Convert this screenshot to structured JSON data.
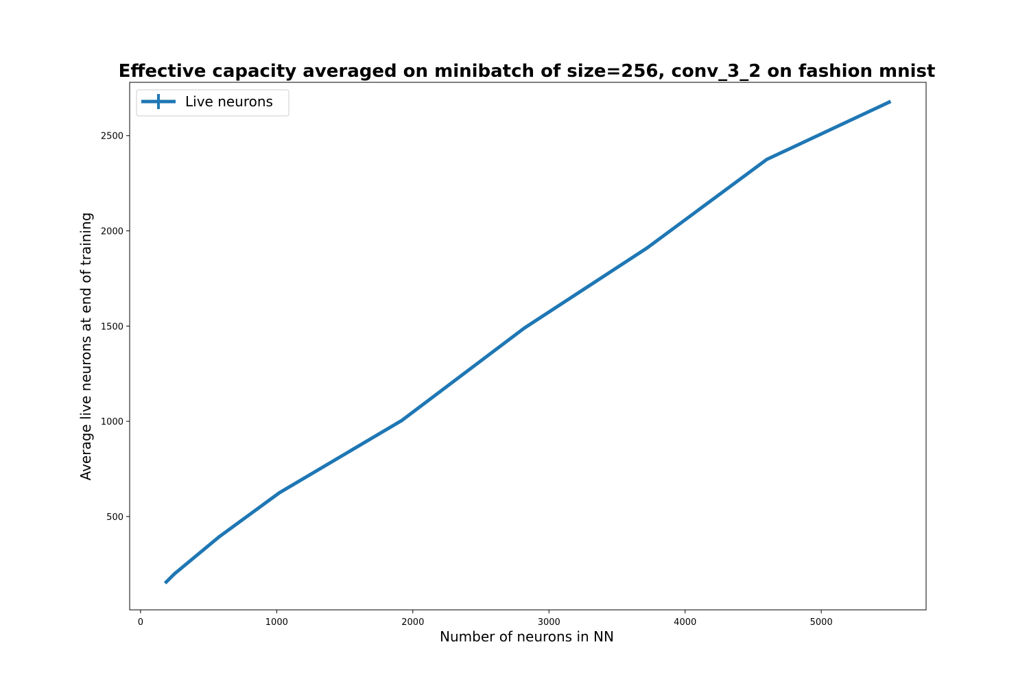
{
  "chart_data": {
    "type": "line",
    "title": "Effective capacity averaged on minibatch of size=256, conv_3_2 on fashion mnist",
    "xlabel": "Number of neurons in NN",
    "ylabel": "Average live neurons at end of training",
    "xlim": [
      -80,
      5770
    ],
    "ylim": [
      10,
      2780
    ],
    "xticks": [
      0,
      1000,
      2000,
      3000,
      4000,
      5000
    ],
    "yticks": [
      500,
      1000,
      1500,
      2000,
      2500
    ],
    "grid": false,
    "legend_position": "upper-left",
    "series": [
      {
        "name": "Live neurons",
        "color": "#1f77b4",
        "marker": "plus",
        "x": [
          180,
          250,
          580,
          1020,
          1920,
          2820,
          3720,
          4600,
          5510
        ],
        "y": [
          150,
          200,
          395,
          625,
          1005,
          1490,
          1910,
          2375,
          2680
        ]
      }
    ]
  }
}
